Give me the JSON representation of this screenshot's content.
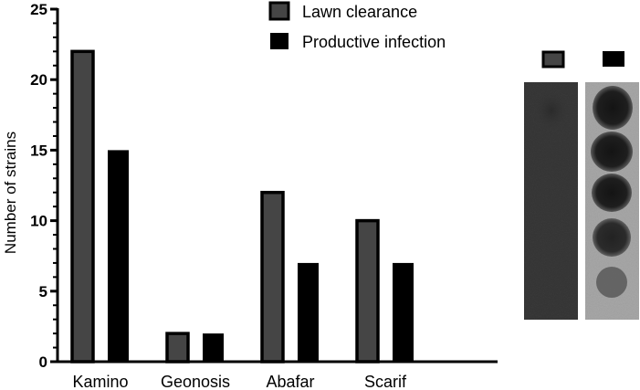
{
  "chart_data": {
    "type": "bar",
    "categories": [
      "Kamino",
      "Geonosis",
      "Abafar",
      "Scarif"
    ],
    "series": [
      {
        "name": "Lawn clearance",
        "values": [
          22,
          2,
          12,
          10
        ],
        "color": "#454545"
      },
      {
        "name": "Productive infection",
        "values": [
          15,
          2,
          7,
          7
        ],
        "color": "#000000"
      }
    ],
    "xlabel": "",
    "ylabel": "Number of strains",
    "ylim": [
      0,
      25
    ],
    "yticks": [
      0,
      5,
      10,
      15,
      20,
      25
    ],
    "grid": false,
    "legend": "top-right"
  },
  "plate_panel": {
    "description_swatches": [
      "#454545",
      "#000000"
    ],
    "left_strip_color": "#3a3a3a",
    "right_strip_color": "#a9a9a9",
    "right_plaque_count": 5
  }
}
